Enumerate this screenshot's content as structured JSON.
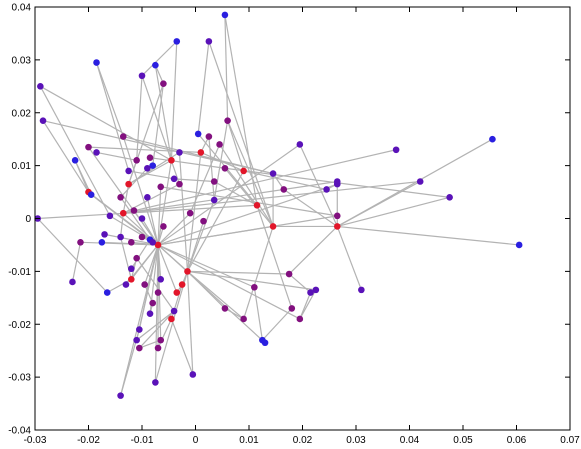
{
  "chart_data": {
    "type": "scatter",
    "title": "",
    "xlabel": "",
    "ylabel": "",
    "xlim": [
      -0.03,
      0.07
    ],
    "ylim": [
      -0.04,
      0.04
    ],
    "grid": false,
    "legend": "none",
    "x_ticks": [
      -0.03,
      -0.02,
      -0.01,
      0,
      0.01,
      0.02,
      0.03,
      0.04,
      0.05,
      0.06,
      0.07
    ],
    "x_tick_labels": [
      "-0.03",
      "-0.02",
      "-0.01",
      "0",
      "0.01",
      "0.02",
      "0.03",
      "0.04",
      "0.05",
      "0.06",
      "0.07"
    ],
    "y_ticks": [
      -0.04,
      -0.03,
      -0.02,
      -0.01,
      0,
      0.01,
      0.02,
      0.03,
      0.04
    ],
    "y_tick_labels": [
      "-0.04",
      "-0.03",
      "-0.02",
      "-0.01",
      "0",
      "0.01",
      "0.02",
      "0.03",
      "0.04"
    ],
    "edge_color": "#b3b3b3",
    "node_colors": {
      "blue": "#2a1fe0",
      "indigo": "#5a12b8",
      "purple": "#82107f",
      "red": "#e2162a"
    },
    "nodes": [
      {
        "x": 0.0055,
        "y": 0.0385,
        "c": "blue"
      },
      {
        "x": -0.0035,
        "y": 0.0335,
        "c": "blue"
      },
      {
        "x": 0.0025,
        "y": 0.0335,
        "c": "indigo"
      },
      {
        "x": -0.0185,
        "y": 0.0295,
        "c": "blue"
      },
      {
        "x": -0.0075,
        "y": 0.029,
        "c": "blue"
      },
      {
        "x": -0.01,
        "y": 0.027,
        "c": "indigo"
      },
      {
        "x": -0.006,
        "y": 0.0255,
        "c": "purple"
      },
      {
        "x": -0.029,
        "y": 0.025,
        "c": "indigo"
      },
      {
        "x": -0.0285,
        "y": 0.0185,
        "c": "indigo"
      },
      {
        "x": 0.006,
        "y": 0.0185,
        "c": "purple"
      },
      {
        "x": -0.0135,
        "y": 0.0155,
        "c": "purple"
      },
      {
        "x": 0.0005,
        "y": 0.016,
        "c": "blue"
      },
      {
        "x": 0.0025,
        "y": 0.0155,
        "c": "purple"
      },
      {
        "x": 0.0045,
        "y": 0.014,
        "c": "purple"
      },
      {
        "x": 0.0195,
        "y": 0.014,
        "c": "indigo"
      },
      {
        "x": 0.0375,
        "y": 0.013,
        "c": "indigo"
      },
      {
        "x": 0.0555,
        "y": 0.015,
        "c": "blue"
      },
      {
        "x": -0.02,
        "y": 0.0135,
        "c": "purple"
      },
      {
        "x": -0.0185,
        "y": 0.0125,
        "c": "indigo"
      },
      {
        "x": -0.0225,
        "y": 0.011,
        "c": "blue"
      },
      {
        "x": 0.001,
        "y": 0.0125,
        "c": "red"
      },
      {
        "x": -0.003,
        "y": 0.0125,
        "c": "indigo"
      },
      {
        "x": -0.0045,
        "y": 0.011,
        "c": "red"
      },
      {
        "x": -0.0085,
        "y": 0.0115,
        "c": "purple"
      },
      {
        "x": -0.011,
        "y": 0.011,
        "c": "purple"
      },
      {
        "x": -0.008,
        "y": 0.01,
        "c": "blue"
      },
      {
        "x": -0.009,
        "y": 0.0095,
        "c": "indigo"
      },
      {
        "x": -0.0125,
        "y": 0.009,
        "c": "indigo"
      },
      {
        "x": 0.0055,
        "y": 0.0095,
        "c": "purple"
      },
      {
        "x": 0.009,
        "y": 0.009,
        "c": "red"
      },
      {
        "x": 0.0145,
        "y": 0.0085,
        "c": "indigo"
      },
      {
        "x": -0.004,
        "y": 0.0075,
        "c": "indigo"
      },
      {
        "x": -0.003,
        "y": 0.0065,
        "c": "purple"
      },
      {
        "x": 0.0035,
        "y": 0.007,
        "c": "purple"
      },
      {
        "x": -0.0065,
        "y": 0.006,
        "c": "purple"
      },
      {
        "x": -0.0125,
        "y": 0.0065,
        "c": "red"
      },
      {
        "x": 0.0165,
        "y": 0.0055,
        "c": "purple"
      },
      {
        "x": 0.0245,
        "y": 0.0055,
        "c": "indigo"
      },
      {
        "x": 0.0265,
        "y": 0.0065,
        "c": "indigo"
      },
      {
        "x": 0.0265,
        "y": 0.007,
        "c": "indigo"
      },
      {
        "x": 0.042,
        "y": 0.007,
        "c": "indigo"
      },
      {
        "x": 0.0475,
        "y": 0.004,
        "c": "indigo"
      },
      {
        "x": -0.02,
        "y": 0.005,
        "c": "red"
      },
      {
        "x": -0.0195,
        "y": 0.0045,
        "c": "blue"
      },
      {
        "x": -0.014,
        "y": 0.004,
        "c": "purple"
      },
      {
        "x": -0.009,
        "y": 0.004,
        "c": "indigo"
      },
      {
        "x": 0.0035,
        "y": 0.0035,
        "c": "indigo"
      },
      {
        "x": 0.0115,
        "y": 0.0025,
        "c": "red"
      },
      {
        "x": -0.001,
        "y": 0.001,
        "c": "purple"
      },
      {
        "x": -0.0115,
        "y": 0.0015,
        "c": "purple"
      },
      {
        "x": -0.0135,
        "y": 0.001,
        "c": "red"
      },
      {
        "x": -0.016,
        "y": 0.0005,
        "c": "indigo"
      },
      {
        "x": 0.0265,
        "y": 0.0005,
        "c": "purple"
      },
      {
        "x": -0.0295,
        "y": 0.0,
        "c": "indigo"
      },
      {
        "x": -0.01,
        "y": 0.0,
        "c": "indigo"
      },
      {
        "x": 0.0015,
        "y": -0.0005,
        "c": "purple"
      },
      {
        "x": -0.006,
        "y": -0.0015,
        "c": "purple"
      },
      {
        "x": 0.0145,
        "y": -0.0015,
        "c": "red"
      },
      {
        "x": 0.0265,
        "y": -0.0015,
        "c": "red"
      },
      {
        "x": -0.017,
        "y": -0.003,
        "c": "indigo"
      },
      {
        "x": -0.014,
        "y": -0.0035,
        "c": "indigo"
      },
      {
        "x": -0.01,
        "y": -0.0035,
        "c": "purple"
      },
      {
        "x": -0.0085,
        "y": -0.004,
        "c": "blue"
      },
      {
        "x": -0.0215,
        "y": -0.0045,
        "c": "purple"
      },
      {
        "x": -0.0175,
        "y": -0.0045,
        "c": "blue"
      },
      {
        "x": -0.012,
        "y": -0.0045,
        "c": "purple"
      },
      {
        "x": -0.007,
        "y": -0.005,
        "c": "red"
      },
      {
        "x": -0.008,
        "y": -0.0045,
        "c": "indigo"
      },
      {
        "x": 0.0605,
        "y": -0.005,
        "c": "blue"
      },
      {
        "x": -0.011,
        "y": -0.0075,
        "c": "purple"
      },
      {
        "x": -0.012,
        "y": -0.0095,
        "c": "indigo"
      },
      {
        "x": -0.0015,
        "y": -0.01,
        "c": "red"
      },
      {
        "x": 0.0175,
        "y": -0.0105,
        "c": "purple"
      },
      {
        "x": -0.0065,
        "y": -0.0115,
        "c": "indigo"
      },
      {
        "x": -0.023,
        "y": -0.012,
        "c": "indigo"
      },
      {
        "x": -0.012,
        "y": -0.0115,
        "c": "red"
      },
      {
        "x": -0.013,
        "y": -0.0125,
        "c": "indigo"
      },
      {
        "x": -0.0095,
        "y": -0.0125,
        "c": "purple"
      },
      {
        "x": -0.0025,
        "y": -0.0125,
        "c": "red"
      },
      {
        "x": 0.011,
        "y": -0.013,
        "c": "purple"
      },
      {
        "x": -0.0165,
        "y": -0.014,
        "c": "blue"
      },
      {
        "x": -0.007,
        "y": -0.014,
        "c": "purple"
      },
      {
        "x": -0.0035,
        "y": -0.014,
        "c": "red"
      },
      {
        "x": 0.0215,
        "y": -0.014,
        "c": "indigo"
      },
      {
        "x": 0.0225,
        "y": -0.0135,
        "c": "indigo"
      },
      {
        "x": 0.031,
        "y": -0.0135,
        "c": "indigo"
      },
      {
        "x": -0.008,
        "y": -0.016,
        "c": "purple"
      },
      {
        "x": 0.0055,
        "y": -0.017,
        "c": "purple"
      },
      {
        "x": 0.018,
        "y": -0.017,
        "c": "purple"
      },
      {
        "x": -0.004,
        "y": -0.0175,
        "c": "indigo"
      },
      {
        "x": -0.0085,
        "y": -0.018,
        "c": "indigo"
      },
      {
        "x": -0.0045,
        "y": -0.019,
        "c": "red"
      },
      {
        "x": 0.009,
        "y": -0.019,
        "c": "purple"
      },
      {
        "x": 0.0195,
        "y": -0.019,
        "c": "purple"
      },
      {
        "x": -0.0105,
        "y": -0.021,
        "c": "indigo"
      },
      {
        "x": -0.011,
        "y": -0.023,
        "c": "indigo"
      },
      {
        "x": -0.0065,
        "y": -0.023,
        "c": "purple"
      },
      {
        "x": 0.0125,
        "y": -0.023,
        "c": "blue"
      },
      {
        "x": 0.013,
        "y": -0.0235,
        "c": "blue"
      },
      {
        "x": -0.0105,
        "y": -0.0245,
        "c": "purple"
      },
      {
        "x": -0.007,
        "y": -0.0245,
        "c": "purple"
      },
      {
        "x": -0.0005,
        "y": -0.0295,
        "c": "indigo"
      },
      {
        "x": -0.0075,
        "y": -0.031,
        "c": "indigo"
      },
      {
        "x": -0.014,
        "y": -0.0335,
        "c": "indigo"
      }
    ],
    "edges": [
      [
        0,
        9
      ],
      [
        0,
        47
      ],
      [
        1,
        5
      ],
      [
        1,
        22
      ],
      [
        2,
        11
      ],
      [
        2,
        57
      ],
      [
        3,
        27
      ],
      [
        3,
        10
      ],
      [
        4,
        6
      ],
      [
        4,
        22
      ],
      [
        5,
        24
      ],
      [
        5,
        32
      ],
      [
        6,
        25
      ],
      [
        6,
        35
      ],
      [
        7,
        22
      ],
      [
        7,
        51
      ],
      [
        8,
        30
      ],
      [
        8,
        42
      ],
      [
        9,
        29
      ],
      [
        9,
        46
      ],
      [
        9,
        57
      ],
      [
        10,
        30
      ],
      [
        10,
        66
      ],
      [
        11,
        47
      ],
      [
        12,
        20
      ],
      [
        13,
        48
      ],
      [
        14,
        58
      ],
      [
        14,
        66
      ],
      [
        15,
        50
      ],
      [
        16,
        58
      ],
      [
        17,
        20
      ],
      [
        17,
        66
      ],
      [
        18,
        24
      ],
      [
        19,
        42
      ],
      [
        19,
        43
      ],
      [
        20,
        71
      ],
      [
        20,
        29
      ],
      [
        21,
        35
      ],
      [
        22,
        35
      ],
      [
        22,
        66
      ],
      [
        23,
        28
      ],
      [
        24,
        35
      ],
      [
        25,
        26
      ],
      [
        26,
        44
      ],
      [
        27,
        31
      ],
      [
        28,
        57
      ],
      [
        29,
        71
      ],
      [
        29,
        37
      ],
      [
        30,
        36
      ],
      [
        30,
        57
      ],
      [
        31,
        33
      ],
      [
        32,
        50
      ],
      [
        33,
        47
      ],
      [
        34,
        66
      ],
      [
        35,
        50
      ],
      [
        36,
        58
      ],
      [
        37,
        38
      ],
      [
        38,
        66
      ],
      [
        39,
        50
      ],
      [
        40,
        50
      ],
      [
        41,
        58
      ],
      [
        42,
        66
      ],
      [
        43,
        62
      ],
      [
        44,
        62
      ],
      [
        45,
        66
      ],
      [
        46,
        71
      ],
      [
        47,
        53
      ],
      [
        47,
        88
      ],
      [
        48,
        66
      ],
      [
        49,
        66
      ],
      [
        50,
        60
      ],
      [
        50,
        66
      ],
      [
        51,
        66
      ],
      [
        52,
        66
      ],
      [
        53,
        80
      ],
      [
        54,
        66
      ],
      [
        55,
        71
      ],
      [
        56,
        66
      ],
      [
        57,
        58
      ],
      [
        57,
        66
      ],
      [
        57,
        92
      ],
      [
        58,
        68
      ],
      [
        58,
        72
      ],
      [
        58,
        85
      ],
      [
        59,
        66
      ],
      [
        60,
        75
      ],
      [
        61,
        66
      ],
      [
        62,
        70
      ],
      [
        63,
        66
      ],
      [
        63,
        74
      ],
      [
        64,
        66
      ],
      [
        65,
        66
      ],
      [
        66,
        71
      ],
      [
        66,
        73
      ],
      [
        66,
        75
      ],
      [
        66,
        77
      ],
      [
        66,
        79
      ],
      [
        66,
        82
      ],
      [
        66,
        90
      ],
      [
        66,
        94
      ],
      [
        66,
        96
      ],
      [
        67,
        66
      ],
      [
        69,
        75
      ],
      [
        69,
        89
      ],
      [
        71,
        78
      ],
      [
        71,
        72
      ],
      [
        71,
        87
      ],
      [
        71,
        92
      ],
      [
        71,
        102
      ],
      [
        72,
        83
      ],
      [
        75,
        80
      ],
      [
        76,
        66
      ],
      [
        77,
        86
      ],
      [
        78,
        82
      ],
      [
        78,
        91
      ],
      [
        79,
        97
      ],
      [
        81,
        66
      ],
      [
        83,
        93
      ],
      [
        84,
        93
      ],
      [
        84,
        71
      ],
      [
        86,
        90
      ],
      [
        87,
        92
      ],
      [
        88,
        97
      ],
      [
        89,
        95
      ],
      [
        89,
        99
      ],
      [
        91,
        100
      ],
      [
        91,
        101
      ],
      [
        94,
        103
      ],
      [
        95,
        66
      ],
      [
        96,
        99
      ],
      [
        98,
        66
      ],
      [
        100,
        66
      ],
      [
        101,
        71
      ],
      [
        102,
        66
      ],
      [
        103,
        66
      ],
      [
        93,
        66
      ],
      [
        21,
        71
      ],
      [
        13,
        57
      ],
      [
        12,
        46
      ],
      [
        28,
        41
      ],
      [
        39,
        58
      ],
      [
        40,
        58
      ],
      [
        34,
        52
      ]
    ]
  }
}
